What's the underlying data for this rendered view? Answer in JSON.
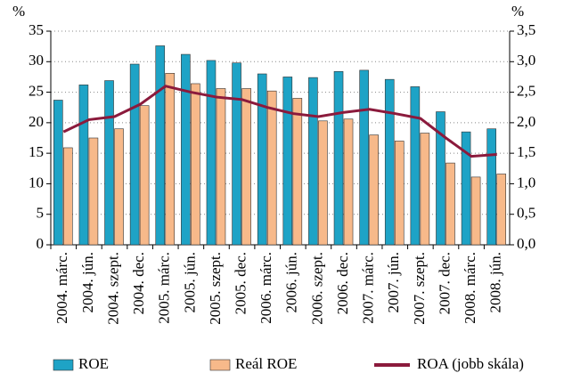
{
  "chart_data": {
    "type": "bar",
    "y_unit": "%",
    "y2_unit": "%",
    "categories": [
      "2004. márc.",
      "2004. jún.",
      "2004. szept.",
      "2004. dec.",
      "2005. márc.",
      "2005. jún.",
      "2005. szept.",
      "2005. dec.",
      "2006. márc.",
      "2006. jún.",
      "2006. szept.",
      "2006. dec.",
      "2007. márc.",
      "2007. jún.",
      "2007. szept.",
      "2007. dec.",
      "2008. márc.",
      "2008. jún."
    ],
    "series": [
      {
        "name": "ROE",
        "color": "#1ea3c6",
        "type": "bar",
        "values": [
          23.7,
          26.2,
          26.9,
          29.6,
          32.6,
          31.2,
          30.2,
          29.8,
          28.0,
          27.5,
          27.4,
          28.4,
          28.6,
          27.1,
          25.9,
          21.8,
          18.5,
          19.0
        ]
      },
      {
        "name": "Reál ROE",
        "color": "#f7b98a",
        "type": "bar",
        "values": [
          15.9,
          17.5,
          19.0,
          22.8,
          28.1,
          26.4,
          25.6,
          25.6,
          25.2,
          24.0,
          20.3,
          20.6,
          18.0,
          17.0,
          18.3,
          13.4,
          11.1,
          11.6
        ]
      },
      {
        "name": "ROA (jobb skála)",
        "color": "#8b1a3c",
        "type": "line",
        "axis": "y2",
        "values": [
          1.85,
          2.05,
          2.1,
          2.3,
          2.6,
          2.5,
          2.42,
          2.38,
          2.25,
          2.15,
          2.1,
          2.17,
          2.22,
          2.15,
          2.07,
          1.75,
          1.45,
          1.48
        ]
      }
    ],
    "ylim": [
      0,
      35
    ],
    "yticks": [
      0,
      5,
      10,
      15,
      20,
      25,
      30,
      35
    ],
    "y2lim": [
      0,
      3.5
    ],
    "y2ticks": [
      {
        "value": 0,
        "label": "0,0"
      },
      {
        "value": 0.5,
        "label": "0,5"
      },
      {
        "value": 1,
        "label": "1,0"
      },
      {
        "value": 1.5,
        "label": "1,5"
      },
      {
        "value": 2,
        "label": "2,0"
      },
      {
        "value": 2.5,
        "label": "2,5"
      },
      {
        "value": 3,
        "label": "3,0"
      },
      {
        "value": 3.5,
        "label": "3,5"
      }
    ],
    "grid": true
  }
}
